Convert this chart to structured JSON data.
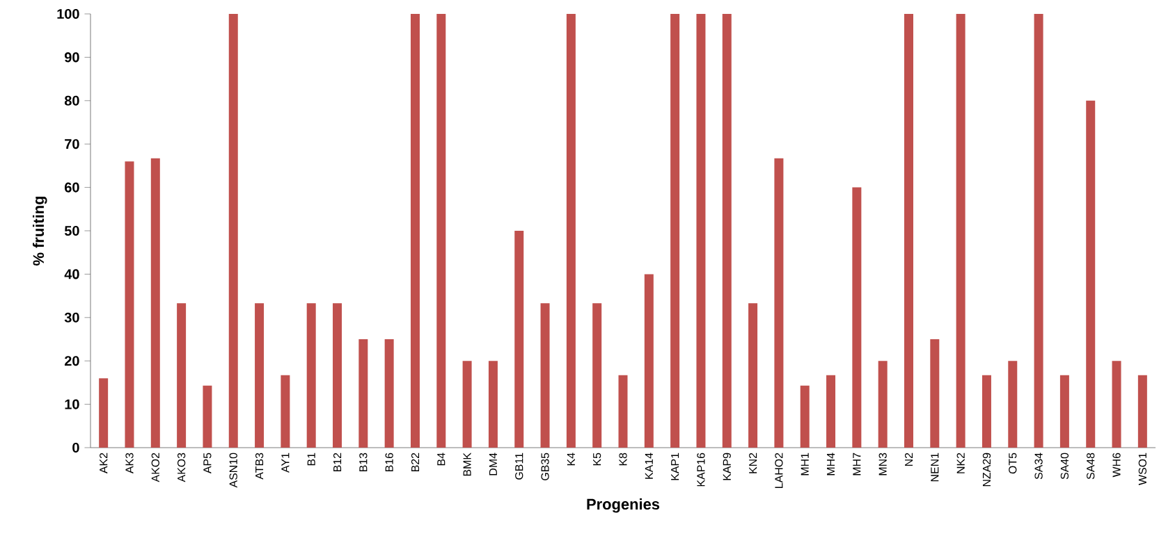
{
  "chart_data": {
    "type": "bar",
    "xlabel": "Progenies",
    "ylabel": "% fruiting",
    "categories": [
      "AK2",
      "AK3",
      "AKO2",
      "AKO3",
      "AP5",
      "ASN10",
      "ATB3",
      "AY1",
      "B1",
      "B12",
      "B13",
      "B16",
      "B22",
      "B4",
      "BMK",
      "DM4",
      "GB11",
      "GB35",
      "K4",
      "K5",
      "K8",
      "KA14",
      "KAP1",
      "KAP16",
      "KAP9",
      "KN2",
      "LAHO2",
      "MH1",
      "MH4",
      "MH7",
      "MN3",
      "N2",
      "NEN1",
      "NK2",
      "NZA29",
      "OT5",
      "SA34",
      "SA40",
      "SA48",
      "WH6",
      "WSO1"
    ],
    "values": [
      16,
      66,
      66.7,
      33.3,
      14.3,
      100,
      33.3,
      16.7,
      33.3,
      33.3,
      25,
      25,
      100,
      100,
      20,
      20,
      50,
      33.3,
      100,
      33.3,
      16.7,
      40,
      100,
      100,
      100,
      33.3,
      66.7,
      14.3,
      16.7,
      60,
      20,
      100,
      25,
      100,
      16.7,
      20,
      100,
      16.7,
      80,
      20,
      16.7
    ],
    "color": "#c0504d",
    "ylim": [
      0,
      100
    ],
    "yticks": [
      0,
      10,
      20,
      30,
      40,
      50,
      60,
      70,
      80,
      90,
      100
    ]
  }
}
